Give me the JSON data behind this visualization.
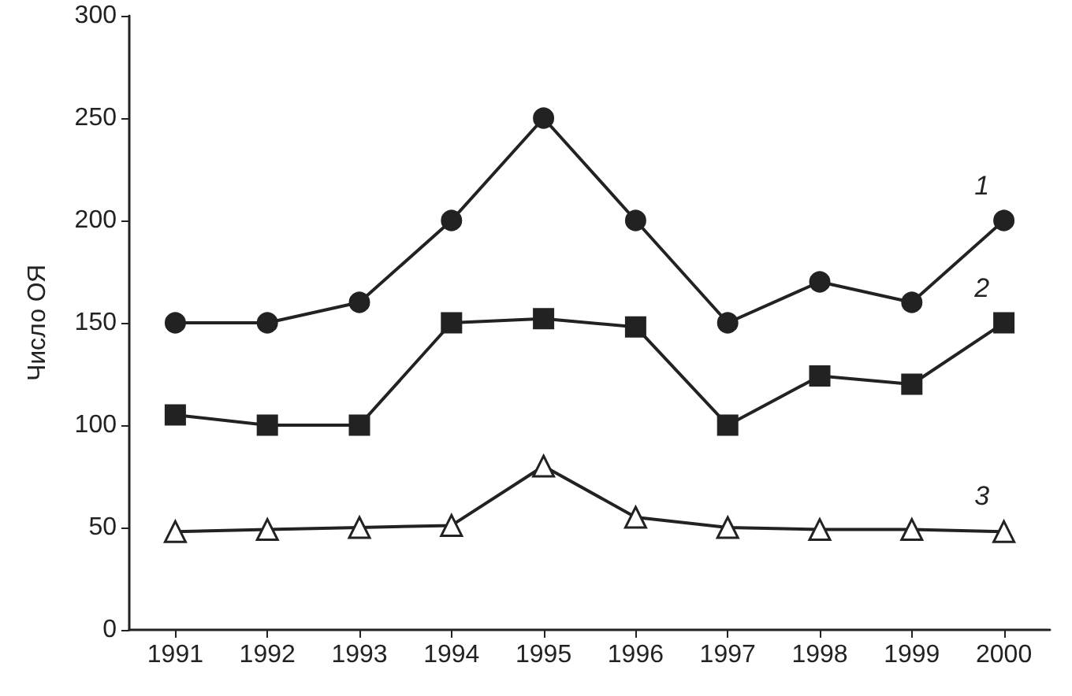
{
  "chart_data": {
    "type": "line",
    "ylabel": "Число ОЯ",
    "categories": [
      "1991",
      "1992",
      "1993",
      "1994",
      "1995",
      "1996",
      "1997",
      "1998",
      "1999",
      "2000"
    ],
    "series": [
      {
        "name": "1",
        "color": "#222222",
        "marker": "circle",
        "values": [
          150,
          150,
          160,
          200,
          250,
          200,
          150,
          170,
          160,
          200
        ]
      },
      {
        "name": "2",
        "color": "#222222",
        "marker": "square",
        "values": [
          105,
          100,
          100,
          150,
          152,
          148,
          100,
          124,
          120,
          150
        ]
      },
      {
        "name": "3",
        "color": "#222222",
        "marker": "triangle",
        "values": [
          48,
          49,
          50,
          51,
          80,
          55,
          50,
          49,
          49,
          48
        ]
      }
    ],
    "ylim": [
      0,
      300
    ],
    "yticks": [
      0,
      50,
      100,
      150,
      200,
      250,
      300
    ],
    "grid": false,
    "line_style": "solid"
  }
}
